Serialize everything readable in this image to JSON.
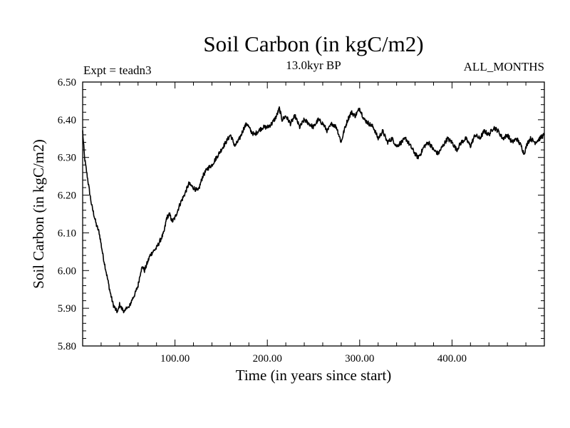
{
  "chart_data": {
    "type": "line",
    "title": "Soil Carbon (in kgC/m2)",
    "subtitle": "13.0kyr BP",
    "experiment_label": "Expt = teadn3",
    "months_label": "ALL_MONTHS",
    "xlabel": "Time (in years since start)",
    "ylabel": "Soil Carbon (in kgC/m2)",
    "xlim": [
      0,
      500
    ],
    "ylim": [
      5.8,
      6.5
    ],
    "x_ticks": [
      100,
      200,
      300,
      400
    ],
    "x_tick_labels": [
      "100.00",
      "200.00",
      "300.00",
      "400.00"
    ],
    "y_ticks": [
      5.8,
      5.9,
      6.0,
      6.1,
      6.2,
      6.3,
      6.4,
      6.5
    ],
    "y_tick_labels": [
      "5.80",
      "5.90",
      "6.00",
      "6.10",
      "6.20",
      "6.30",
      "6.40",
      "6.50"
    ],
    "line_color": "#000000",
    "series": [
      {
        "name": "Soil Carbon",
        "x": [
          0,
          2,
          5,
          8,
          10,
          15,
          18,
          22,
          26,
          30,
          33,
          36,
          38,
          40,
          42,
          44,
          46,
          48,
          50,
          53,
          57,
          60,
          63,
          65,
          67,
          70,
          73,
          76,
          80,
          84,
          88,
          91,
          94,
          97,
          100,
          103,
          106,
          110,
          115,
          120,
          125,
          130,
          135,
          140,
          145,
          150,
          155,
          160,
          165,
          170,
          175,
          178,
          182,
          186,
          190,
          195,
          200,
          205,
          210,
          213,
          216,
          220,
          225,
          230,
          235,
          240,
          245,
          250,
          255,
          260,
          265,
          270,
          275,
          280,
          283,
          287,
          291,
          295,
          300,
          305,
          310,
          315,
          320,
          325,
          330,
          335,
          340,
          345,
          350,
          355,
          360,
          363,
          366,
          370,
          375,
          380,
          385,
          390,
          395,
          400,
          405,
          410,
          415,
          420,
          425,
          430,
          435,
          440,
          445,
          450,
          455,
          460,
          465,
          470,
          475,
          478,
          482,
          485,
          490,
          495,
          500
        ],
        "y": [
          6.37,
          6.3,
          6.25,
          6.2,
          6.17,
          6.12,
          6.1,
          6.04,
          5.99,
          5.94,
          5.91,
          5.895,
          5.89,
          5.91,
          5.9,
          5.895,
          5.89,
          5.905,
          5.9,
          5.92,
          5.94,
          5.96,
          6.0,
          6.01,
          6.0,
          6.02,
          6.04,
          6.05,
          6.06,
          6.08,
          6.1,
          6.14,
          6.15,
          6.13,
          6.14,
          6.16,
          6.18,
          6.2,
          6.23,
          6.22,
          6.21,
          6.25,
          6.27,
          6.28,
          6.3,
          6.32,
          6.34,
          6.36,
          6.33,
          6.35,
          6.38,
          6.39,
          6.37,
          6.36,
          6.37,
          6.38,
          6.38,
          6.39,
          6.41,
          6.43,
          6.4,
          6.41,
          6.39,
          6.41,
          6.38,
          6.4,
          6.39,
          6.38,
          6.4,
          6.39,
          6.37,
          6.39,
          6.38,
          6.34,
          6.37,
          6.4,
          6.42,
          6.41,
          6.43,
          6.4,
          6.39,
          6.38,
          6.35,
          6.37,
          6.34,
          6.35,
          6.33,
          6.34,
          6.35,
          6.33,
          6.31,
          6.3,
          6.31,
          6.33,
          6.34,
          6.32,
          6.31,
          6.33,
          6.35,
          6.34,
          6.32,
          6.34,
          6.35,
          6.33,
          6.36,
          6.35,
          6.37,
          6.36,
          6.38,
          6.37,
          6.35,
          6.36,
          6.34,
          6.35,
          6.33,
          6.31,
          6.34,
          6.35,
          6.34,
          6.35,
          6.36
        ]
      }
    ]
  }
}
